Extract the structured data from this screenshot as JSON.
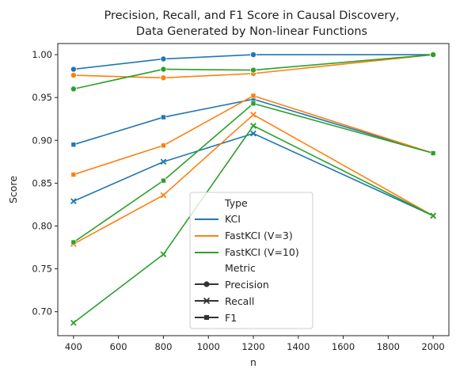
{
  "chart_data": {
    "type": "line",
    "title": "Precision, Recall, and F1 Score in Causal Discovery,",
    "subtitle": "Data Generated by Non-linear Functions",
    "xlabel": "n",
    "ylabel": "Score",
    "x": [
      400,
      800,
      1200,
      2000
    ],
    "xlim": [
      330,
      2070
    ],
    "ylim": [
      0.672,
      1.013
    ],
    "xticks": [
      "400",
      "600",
      "800",
      "1000",
      "1200",
      "1400",
      "1600",
      "1800",
      "2000"
    ],
    "yticks": [
      "0.70",
      "0.75",
      "0.80",
      "0.85",
      "0.90",
      "0.95",
      "1.00"
    ],
    "legend": {
      "position": "lower center",
      "type_title": "Type",
      "metric_title": "Metric",
      "types": [
        "KCI",
        "FastKCI (V=3)",
        "FastKCI (V=10)"
      ],
      "metrics": [
        "Precision",
        "Recall",
        "F1"
      ]
    },
    "series": [
      {
        "type": "KCI",
        "metric": "Precision",
        "color": "#1f77b4",
        "marker": "circle",
        "values": [
          0.983,
          0.995,
          1.0,
          1.0
        ]
      },
      {
        "type": "KCI",
        "metric": "Recall",
        "color": "#1f77b4",
        "marker": "x",
        "values": [
          0.829,
          0.875,
          0.908,
          0.812
        ]
      },
      {
        "type": "KCI",
        "metric": "F1",
        "color": "#1f77b4",
        "marker": "square",
        "values": [
          0.895,
          0.927,
          0.948,
          0.885
        ]
      },
      {
        "type": "FastKCI (V=3)",
        "metric": "Precision",
        "color": "#ff7f0e",
        "marker": "circle",
        "values": [
          0.976,
          0.973,
          0.978,
          1.0
        ]
      },
      {
        "type": "FastKCI (V=3)",
        "metric": "Recall",
        "color": "#ff7f0e",
        "marker": "x",
        "values": [
          0.779,
          0.836,
          0.93,
          0.812
        ]
      },
      {
        "type": "FastKCI (V=3)",
        "metric": "F1",
        "color": "#ff7f0e",
        "marker": "square",
        "values": [
          0.86,
          0.894,
          0.952,
          0.885
        ]
      },
      {
        "type": "FastKCI (V=10)",
        "metric": "Precision",
        "color": "#2ca02c",
        "marker": "circle",
        "values": [
          0.96,
          0.983,
          0.982,
          1.0
        ]
      },
      {
        "type": "FastKCI (V=10)",
        "metric": "Recall",
        "color": "#2ca02c",
        "marker": "x",
        "values": [
          0.687,
          0.767,
          0.917,
          0.812
        ]
      },
      {
        "type": "FastKCI (V=10)",
        "metric": "F1",
        "color": "#2ca02c",
        "marker": "square",
        "values": [
          0.781,
          0.853,
          0.943,
          0.885
        ]
      }
    ]
  }
}
